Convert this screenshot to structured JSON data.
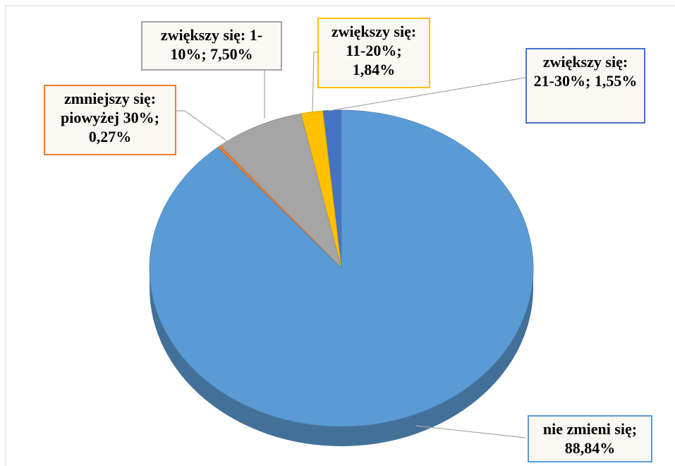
{
  "chart_data": {
    "type": "pie",
    "categories": [
      "zwiększy się: 21-30%",
      "zwiększy się: 11-20%",
      "zwiększy się: 1-10%",
      "zmniejszy się: piowyżej 30%",
      "nie zmieni się"
    ],
    "values": [
      1.55,
      1.84,
      7.5,
      0.27,
      88.84
    ],
    "value_labels": [
      "1,55%",
      "1,84%",
      "7,50%",
      "0,27%",
      "88,84%"
    ],
    "label_separator": "; ",
    "colors": [
      "#4472c4",
      "#ffc000",
      "#a5a5a5",
      "#ed7d31",
      "#5b9bd5"
    ]
  }
}
